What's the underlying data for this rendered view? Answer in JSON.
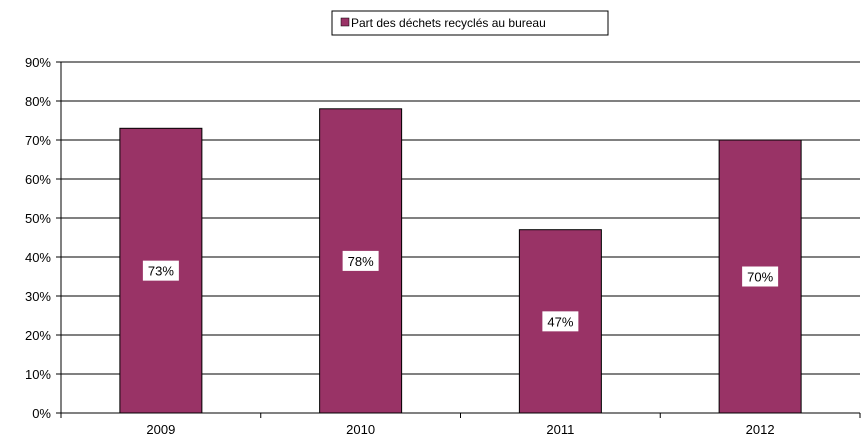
{
  "chart_data": {
    "type": "bar",
    "categories": [
      "2009",
      "2010",
      "2011",
      "2012"
    ],
    "series": [
      {
        "name": "Part des déchets recyclés au bureau",
        "values": [
          73,
          78,
          47,
          70
        ]
      }
    ],
    "data_labels": [
      "73%",
      "78%",
      "47%",
      "70%"
    ],
    "y_ticks": [
      "0%",
      "10%",
      "20%",
      "30%",
      "40%",
      "50%",
      "60%",
      "70%",
      "80%",
      "90%"
    ],
    "ylim": [
      0,
      90
    ],
    "grid": true,
    "legend_position": "top-center",
    "colors": {
      "bar": "#993366",
      "bar_border": "#000000",
      "grid": "#000000",
      "label_bg": "#ffffff"
    }
  }
}
